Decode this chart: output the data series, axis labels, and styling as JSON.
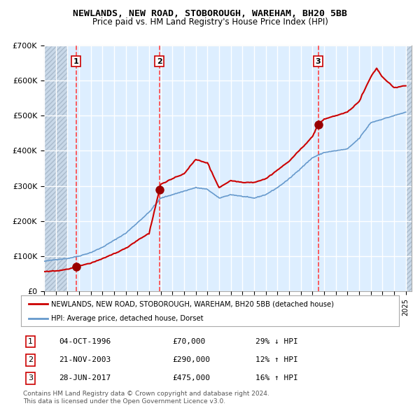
{
  "title": "NEWLANDS, NEW ROAD, STOBOROUGH, WAREHAM, BH20 5BB",
  "subtitle": "Price paid vs. HM Land Registry's House Price Index (HPI)",
  "ylim": [
    0,
    700000
  ],
  "yticks": [
    0,
    100000,
    200000,
    300000,
    400000,
    500000,
    600000,
    700000
  ],
  "ytick_labels": [
    "£0",
    "£100K",
    "£200K",
    "£300K",
    "£400K",
    "£500K",
    "£600K",
    "£700K"
  ],
  "xlim_start": 1994.0,
  "xlim_end": 2025.5,
  "red_line_color": "#cc0000",
  "blue_line_color": "#6699cc",
  "marker_color": "#990000",
  "vline_color": "#ff4444",
  "plot_bg_color": "#ddeeff",
  "grid_color": "#ffffff",
  "sales": [
    {
      "num": 1,
      "date": "04-OCT-1996",
      "year": 1996.75,
      "price": 70000,
      "pct": "29%",
      "dir": "↓"
    },
    {
      "num": 2,
      "date": "21-NOV-2003",
      "year": 2003.88,
      "price": 290000,
      "pct": "12%",
      "dir": "↑"
    },
    {
      "num": 3,
      "date": "28-JUN-2017",
      "year": 2017.49,
      "price": 475000,
      "pct": "16%",
      "dir": "↑"
    }
  ],
  "legend_line1": "NEWLANDS, NEW ROAD, STOBOROUGH, WAREHAM, BH20 5BB (detached house)",
  "legend_line2": "HPI: Average price, detached house, Dorset",
  "footer1": "Contains HM Land Registry data © Crown copyright and database right 2024.",
  "footer2": "This data is licensed under the Open Government Licence v3.0.",
  "hpi_anchors": [
    [
      1994.0,
      85000
    ],
    [
      1995.0,
      90000
    ],
    [
      1996.0,
      93000
    ],
    [
      1997.0,
      100000
    ],
    [
      1998.0,
      110000
    ],
    [
      1999.0,
      125000
    ],
    [
      2000.0,
      145000
    ],
    [
      2001.0,
      165000
    ],
    [
      2002.0,
      195000
    ],
    [
      2003.0,
      225000
    ],
    [
      2004.0,
      265000
    ],
    [
      2005.0,
      275000
    ],
    [
      2006.0,
      285000
    ],
    [
      2007.0,
      295000
    ],
    [
      2008.0,
      290000
    ],
    [
      2009.0,
      265000
    ],
    [
      2010.0,
      275000
    ],
    [
      2011.0,
      270000
    ],
    [
      2012.0,
      265000
    ],
    [
      2013.0,
      275000
    ],
    [
      2014.0,
      295000
    ],
    [
      2015.0,
      320000
    ],
    [
      2016.0,
      350000
    ],
    [
      2017.0,
      380000
    ],
    [
      2018.0,
      395000
    ],
    [
      2019.0,
      400000
    ],
    [
      2020.0,
      405000
    ],
    [
      2021.0,
      435000
    ],
    [
      2022.0,
      480000
    ],
    [
      2023.0,
      490000
    ],
    [
      2024.0,
      500000
    ],
    [
      2025.0,
      510000
    ]
  ],
  "red_anchors": [
    [
      1994.0,
      55000
    ],
    [
      1995.0,
      58000
    ],
    [
      1996.0,
      62000
    ],
    [
      1996.75,
      70000
    ],
    [
      1997.0,
      72000
    ],
    [
      1998.0,
      80000
    ],
    [
      1999.0,
      92000
    ],
    [
      2000.0,
      107000
    ],
    [
      2001.0,
      122000
    ],
    [
      2002.0,
      145000
    ],
    [
      2003.0,
      165000
    ],
    [
      2003.88,
      290000
    ],
    [
      2004.0,
      305000
    ],
    [
      2005.0,
      320000
    ],
    [
      2006.0,
      335000
    ],
    [
      2007.0,
      375000
    ],
    [
      2008.0,
      365000
    ],
    [
      2009.0,
      295000
    ],
    [
      2010.0,
      315000
    ],
    [
      2011.0,
      310000
    ],
    [
      2012.0,
      310000
    ],
    [
      2013.0,
      320000
    ],
    [
      2014.0,
      345000
    ],
    [
      2015.0,
      370000
    ],
    [
      2016.0,
      405000
    ],
    [
      2017.0,
      440000
    ],
    [
      2017.49,
      475000
    ],
    [
      2018.0,
      490000
    ],
    [
      2019.0,
      500000
    ],
    [
      2020.0,
      510000
    ],
    [
      2021.0,
      540000
    ],
    [
      2022.0,
      610000
    ],
    [
      2022.5,
      635000
    ],
    [
      2023.0,
      610000
    ],
    [
      2024.0,
      580000
    ],
    [
      2025.0,
      585000
    ]
  ]
}
